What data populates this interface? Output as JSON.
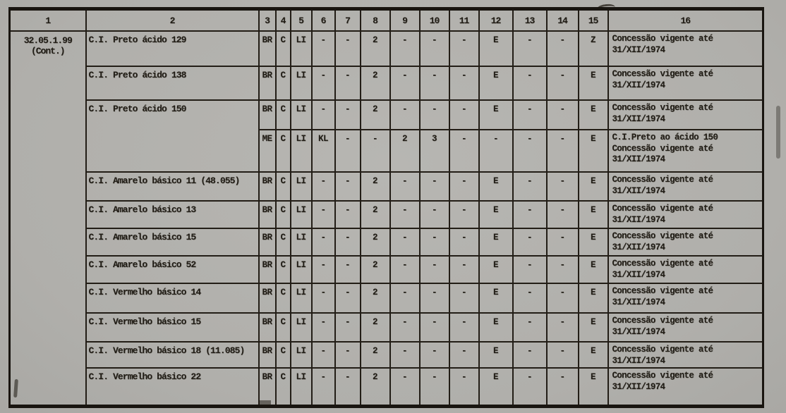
{
  "page": {
    "background_color": "#b0afab",
    "ink_color": "#211d16",
    "description": "Scanned typewritten tariff table of C.I. dye concessions"
  },
  "table": {
    "column_headers": [
      "1",
      "2",
      "3",
      "4",
      "5",
      "6",
      "7",
      "8",
      "9",
      "10",
      "11",
      "12",
      "13",
      "14",
      "15",
      "16"
    ],
    "tariff_code": {
      "line1": "32.05.1.99",
      "line2": "(Cont.)"
    },
    "rows": [
      {
        "name": "C.I. Preto ácido 129",
        "codes": [
          "BR",
          "C",
          "LI",
          "-",
          "-",
          "2",
          "-",
          "-",
          "-",
          "E",
          "-",
          "-",
          "Z"
        ],
        "note": "Concessão vigente até 31/XII/1974"
      },
      {
        "name": "C.I. Preto ácido 138",
        "codes": [
          "BR",
          "C",
          "LI",
          "-",
          "-",
          "2",
          "-",
          "-",
          "-",
          "E",
          "-",
          "-",
          "E"
        ],
        "note": "Concessão vigente até 31/XII/1974"
      },
      {
        "name": "C.I. Preto ácido 150",
        "codes": [
          "BR",
          "C",
          "LI",
          "-",
          "-",
          "2",
          "-",
          "-",
          "-",
          "E",
          "-",
          "-",
          "E"
        ],
        "note": "Concessão vigente até 31/XII/1974"
      },
      {
        "name": null,
        "codes": [
          "ME",
          "C",
          "LI",
          "KL",
          "-",
          "-",
          "2",
          "3",
          "-",
          "-",
          "-",
          "-",
          "E"
        ],
        "note": "C.I.Preto ao ácido 150 Concessão vigente até 31/XII/1974"
      },
      {
        "name": "C.I. Amarelo básico 11 (48.055)",
        "codes": [
          "BR",
          "C",
          "LI",
          "-",
          "-",
          "2",
          "-",
          "-",
          "-",
          "E",
          "-",
          "-",
          "E"
        ],
        "note": "Concessão vigente até 31/XII/1974"
      },
      {
        "name": "C.I. Amarelo básico 13",
        "codes": [
          "BR",
          "C",
          "LI",
          "-",
          "-",
          "2",
          "-",
          "-",
          "-",
          "E",
          "-",
          "-",
          "E"
        ],
        "note": "Concessão vigente até 31/XII/1974"
      },
      {
        "name": "C.I. Amarelo básico 15",
        "codes": [
          "BR",
          "C",
          "LI",
          "-",
          "-",
          "2",
          "-",
          "-",
          "-",
          "E",
          "-",
          "-",
          "E"
        ],
        "note": "Concessão vigente até 31/XII/1974"
      },
      {
        "name": "C.I. Amarelo básico 52",
        "codes": [
          "BR",
          "C",
          "LI",
          "-",
          "-",
          "2",
          "-",
          "-",
          "-",
          "E",
          "-",
          "-",
          "E"
        ],
        "note": "Concessão vigente até 31/XII/1974"
      },
      {
        "name": "C.I. Vermelho básico 14",
        "codes": [
          "BR",
          "C",
          "LI",
          "-",
          "-",
          "2",
          "-",
          "-",
          "-",
          "E",
          "-",
          "-",
          "E"
        ],
        "note": "Concessão vigente até 31/XII/1974"
      },
      {
        "name": "C.I. Vermelho básico 15",
        "codes": [
          "BR",
          "C",
          "LI",
          "-",
          "-",
          "2",
          "-",
          "-",
          "-",
          "E",
          "-",
          "-",
          "E"
        ],
        "note": "Concessão vigente até 31/XII/1974"
      },
      {
        "name": "C.I. Vermelho básico 18 (11.085)",
        "codes": [
          "BR",
          "C",
          "LI",
          "-",
          "-",
          "2",
          "-",
          "-",
          "-",
          "E",
          "-",
          "-",
          "E"
        ],
        "note": "Concessão vigente até 31/XII/1974"
      },
      {
        "name": "C.I. Vermelho básico 22",
        "codes": [
          "BR",
          "C",
          "LI",
          "-",
          "-",
          "2",
          "-",
          "-",
          "-",
          "E",
          "-",
          "-",
          "E"
        ],
        "note": "Concessão vigente até 31/XII/1974"
      }
    ]
  }
}
